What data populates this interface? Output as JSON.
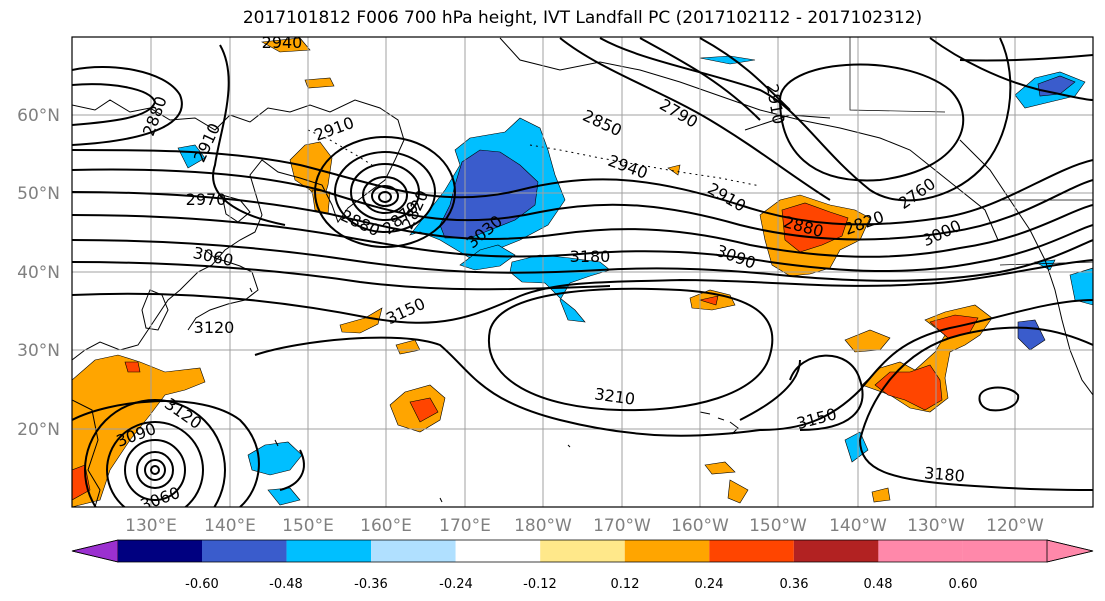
{
  "title": "2017101812 F006 700 hPa height, IVT Landfall PC (2017102112 - 2017102312)",
  "lat_labels": [
    "60°N",
    "50°N",
    "40°N",
    "30°N",
    "20°N"
  ],
  "lon_labels": [
    "130°E",
    "140°E",
    "150°E",
    "160°E",
    "170°E",
    "180°W",
    "170°W",
    "160°W",
    "150°W",
    "140°W",
    "130°W",
    "120°W"
  ],
  "contour_labels": [
    "2940",
    "2880",
    "2910",
    "2910",
    "2970",
    "3060",
    "2880",
    "2870",
    "2820",
    "3030",
    "2850",
    "2790",
    "2910",
    "2940",
    "2910",
    "2880",
    "2820",
    "2760",
    "3000",
    "3090",
    "3180",
    "3150",
    "3120",
    "3210",
    "3150",
    "3180",
    "3120",
    "3090",
    "3060"
  ],
  "colorbar": {
    "tick_labels": [
      "-0.60",
      "-0.48",
      "-0.36",
      "-0.24",
      "-0.12",
      "0.12",
      "0.24",
      "0.36",
      "0.48",
      "0.60"
    ],
    "colors": [
      "#9b30d0",
      "#000080",
      "#3a5ccc",
      "#00bfff",
      "#b0e0ff",
      "#ffffff",
      "#ffe88a",
      "#ffa500",
      "#ff4500",
      "#b22222",
      "#ff88aa"
    ]
  },
  "colors": {
    "positive_shading": "#ffa500",
    "positive_strong": "#ff4500",
    "negative_light": "#00bfff",
    "negative_strong": "#3a5ccc",
    "contour": "#000000",
    "grid": "#a0a0a0"
  }
}
